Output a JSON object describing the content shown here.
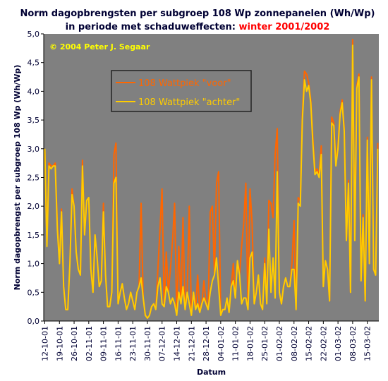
{
  "chart_data": {
    "type": "line",
    "title": "Norm dagopbrengsten per subgroep 108 Wp zonnepanelen (Wh/Wp)",
    "subtitle": "in periode met schaduweffecten: ",
    "subtitle_highlight": "winter 2001/2002",
    "annotation": "© 2004 Peter J. Segaar",
    "x_label": "Datum",
    "y_label": "Norm dagopbrengst per subgroep 108 Wp (Wh/Wp)",
    "legend": "upper left",
    "ylim": [
      0,
      5
    ],
    "yticks": [
      {
        "value": 0,
        "label": "0,0"
      },
      {
        "value": 0.5,
        "label": "0,5"
      },
      {
        "value": 1,
        "label": "1,0"
      },
      {
        "value": 1.5,
        "label": "1,5"
      },
      {
        "value": 2,
        "label": "2,0"
      },
      {
        "value": 2.5,
        "label": "2,5"
      },
      {
        "value": 3,
        "label": "3,0"
      },
      {
        "value": 3.5,
        "label": "3,5"
      },
      {
        "value": 4,
        "label": "4,0"
      },
      {
        "value": 4.5,
        "label": "4,5"
      },
      {
        "value": 5,
        "label": "5,0"
      }
    ],
    "categories": [
      "12-10-01",
      null,
      null,
      null,
      null,
      null,
      null,
      "19-10-01",
      null,
      null,
      null,
      null,
      null,
      null,
      "26-10-01",
      null,
      null,
      null,
      null,
      null,
      null,
      "02-11-01",
      null,
      null,
      null,
      null,
      null,
      null,
      "09-11-01",
      null,
      null,
      null,
      null,
      null,
      null,
      "16-11-01",
      null,
      null,
      null,
      null,
      null,
      null,
      "23-11-01",
      null,
      null,
      null,
      null,
      null,
      null,
      "30-11-01",
      null,
      null,
      null,
      null,
      null,
      null,
      "07-12-01",
      null,
      null,
      null,
      null,
      null,
      null,
      "14-12-01",
      null,
      null,
      null,
      null,
      null,
      null,
      "21-12-01",
      null,
      null,
      null,
      null,
      null,
      null,
      "28-12-01",
      null,
      null,
      null,
      null,
      null,
      null,
      "04-01-02",
      null,
      null,
      null,
      null,
      null,
      null,
      "11-01-02",
      null,
      null,
      null,
      null,
      null,
      null,
      "18-01-02",
      null,
      null,
      null,
      null,
      null,
      null,
      "25-01-02",
      null,
      null,
      null,
      null,
      null,
      null,
      "01-02-02",
      null,
      null,
      null,
      null,
      null,
      null,
      "08-02-02",
      null,
      null,
      null,
      null,
      null,
      null,
      "15-02-02",
      null,
      null,
      null,
      null,
      null,
      null,
      "22-02-02",
      null,
      null,
      null,
      null,
      null,
      null,
      "01-03-02",
      null,
      null,
      null,
      null,
      null,
      null,
      "08-03-02",
      null,
      null,
      null,
      null,
      null,
      null,
      "15-03-02",
      null,
      null,
      null,
      null,
      null
    ],
    "series": [
      {
        "name": "108 Wattpiek \"voor\"",
        "color": "#ff6600",
        "values": [
          3.0,
          1.35,
          2.75,
          2.7,
          2.7,
          2.75,
          1.7,
          1.0,
          1.95,
          0.6,
          0.2,
          0.2,
          1.0,
          2.3,
          2.0,
          1.2,
          0.9,
          0.8,
          2.8,
          1.5,
          2.1,
          2.15,
          0.9,
          0.5,
          1.5,
          1.1,
          0.6,
          0.7,
          2.05,
          0.8,
          0.25,
          0.25,
          0.5,
          2.9,
          3.1,
          0.3,
          0.5,
          0.65,
          0.4,
          0.2,
          0.3,
          0.5,
          0.35,
          0.2,
          0.5,
          0.6,
          2.05,
          0.4,
          0.1,
          0.05,
          0.1,
          0.25,
          0.3,
          0.2,
          0.9,
          1.6,
          2.3,
          0.25,
          1.2,
          0.5,
          0.9,
          1.4,
          2.05,
          0.1,
          1.3,
          0.3,
          1.8,
          0.2,
          0.5,
          2.0,
          0.1,
          0.5,
          0.2,
          0.8,
          0.15,
          0.3,
          0.7,
          0.3,
          0.2,
          1.9,
          2.0,
          0.8,
          2.4,
          2.6,
          0.1,
          0.2,
          0.2,
          0.4,
          0.15,
          0.6,
          1.0,
          0.4,
          1.05,
          0.8,
          1.3,
          1.7,
          2.4,
          0.2,
          2.3,
          1.7,
          0.3,
          0.5,
          0.8,
          0.3,
          0.2,
          1.1,
          0.3,
          2.1,
          2.05,
          1.8,
          2.9,
          3.35,
          0.5,
          0.3,
          0.6,
          0.75,
          0.6,
          0.6,
          1.0,
          1.75,
          0.2,
          2.15,
          2.1,
          3.6,
          4.35,
          4.3,
          4.15,
          3.85,
          3.2,
          2.6,
          2.65,
          2.55,
          3.05,
          0.6,
          1.05,
          0.9,
          0.35,
          3.55,
          3.45,
          2.75,
          3.05,
          3.65,
          3.85,
          3.35,
          1.4,
          2.45,
          0.5,
          4.9,
          1.4,
          4.1,
          4.3,
          0.7,
          1.85,
          0.35,
          3.2,
          1.0,
          4.25,
          0.9,
          0.8,
          3.1
        ]
      },
      {
        "name": "108 Wattpiek \"achter\"",
        "color": "#ffcc00",
        "values": [
          3.0,
          1.3,
          2.7,
          2.65,
          2.7,
          2.7,
          1.6,
          1.0,
          1.9,
          0.6,
          0.2,
          0.2,
          1.0,
          2.2,
          2.0,
          1.2,
          0.9,
          0.8,
          2.7,
          1.5,
          2.1,
          2.15,
          0.9,
          0.5,
          1.5,
          1.1,
          0.6,
          0.7,
          1.9,
          0.8,
          0.25,
          0.25,
          0.5,
          2.4,
          2.5,
          0.3,
          0.5,
          0.65,
          0.4,
          0.2,
          0.3,
          0.5,
          0.35,
          0.2,
          0.5,
          0.6,
          0.75,
          0.4,
          0.1,
          0.05,
          0.1,
          0.25,
          0.3,
          0.2,
          0.6,
          0.75,
          0.3,
          0.25,
          0.6,
          0.5,
          0.3,
          0.4,
          0.3,
          0.1,
          0.5,
          0.3,
          0.6,
          0.2,
          0.5,
          0.3,
          0.1,
          0.5,
          0.2,
          0.3,
          0.15,
          0.3,
          0.4,
          0.3,
          0.2,
          0.5,
          0.7,
          0.8,
          1.1,
          0.6,
          0.1,
          0.2,
          0.2,
          0.4,
          0.15,
          0.6,
          0.7,
          0.4,
          1.05,
          0.8,
          0.3,
          0.4,
          0.4,
          0.2,
          1.1,
          1.2,
          0.3,
          0.5,
          0.8,
          0.3,
          0.2,
          1.0,
          0.3,
          1.6,
          0.5,
          1.1,
          0.4,
          2.6,
          0.5,
          0.3,
          0.6,
          0.75,
          0.6,
          0.6,
          0.9,
          0.9,
          0.2,
          2.05,
          2.0,
          3.5,
          4.2,
          4.0,
          4.1,
          3.8,
          3.1,
          2.55,
          2.6,
          2.5,
          2.9,
          0.6,
          1.05,
          0.9,
          0.35,
          3.45,
          3.4,
          2.7,
          3.0,
          3.6,
          3.8,
          3.3,
          1.4,
          2.4,
          0.5,
          4.8,
          1.4,
          4.05,
          4.25,
          0.7,
          1.8,
          0.35,
          3.15,
          1.0,
          4.2,
          0.9,
          0.8,
          3.0
        ]
      }
    ]
  }
}
